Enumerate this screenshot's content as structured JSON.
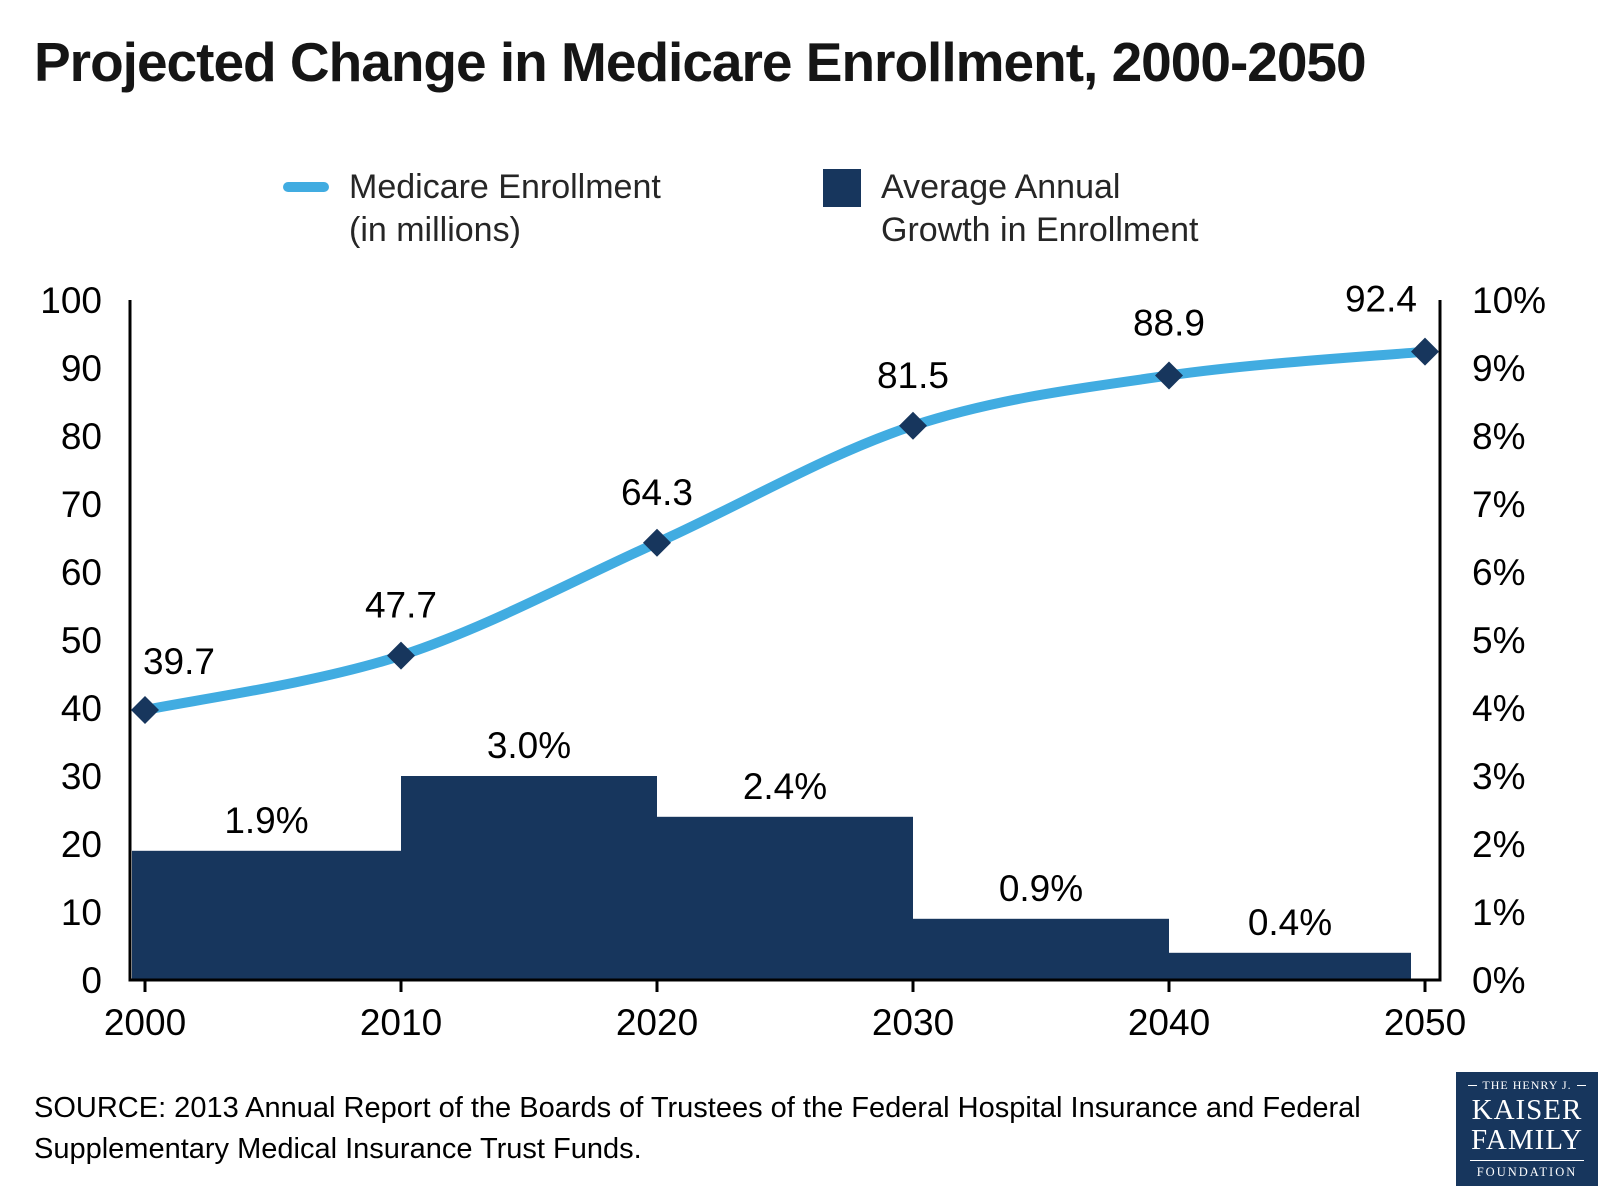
{
  "title": "Projected Change in Medicare Enrollment, 2000-2050",
  "legend": {
    "enrollment": {
      "line1": "Medicare Enrollment",
      "line2": "(in millions)"
    },
    "growth": {
      "line1": "Average Annual",
      "line2": "Growth in Enrollment"
    }
  },
  "source": {
    "text": "SOURCE: 2013 Annual Report of the Boards of Trustees of the Federal Hospital Insurance and Federal Supplementary Medical Insurance Trust Funds."
  },
  "logo": {
    "line1": "THE HENRY J.",
    "line2": "KAISER",
    "line3": "FAMILY",
    "line4": "FOUNDATION"
  },
  "colors": {
    "line": "#41ACE1",
    "marker": "#17365D",
    "bar": "#17365D",
    "axis": "#000000",
    "text": "#000000",
    "logo_bg": "#17365D"
  },
  "chart_data": {
    "type": "line+bar",
    "title": "Projected Change in Medicare Enrollment, 2000-2050",
    "x": [
      2000,
      2010,
      2020,
      2030,
      2040,
      2050
    ],
    "x_ticks": [
      "2000",
      "2010",
      "2020",
      "2030",
      "2040",
      "2050"
    ],
    "series": [
      {
        "name": "Medicare Enrollment (in millions)",
        "type": "line",
        "axis": "left",
        "values": [
          39.7,
          47.7,
          64.3,
          81.5,
          88.9,
          92.4
        ],
        "labels": [
          "39.7",
          "47.7",
          "64.3",
          "81.5",
          "88.9",
          "92.4"
        ]
      },
      {
        "name": "Average Annual Growth in Enrollment",
        "type": "bar",
        "axis": "right",
        "spans": [
          [
            2000,
            2010
          ],
          [
            2010,
            2020
          ],
          [
            2020,
            2030
          ],
          [
            2030,
            2040
          ],
          [
            2040,
            2050
          ]
        ],
        "values": [
          1.9,
          3.0,
          2.4,
          0.9,
          0.4
        ],
        "labels": [
          "1.9%",
          "3.0%",
          "2.4%",
          "0.9%",
          "0.4%"
        ]
      }
    ],
    "left_axis": {
      "min": 0,
      "max": 100,
      "tick_step": 10,
      "ticks": [
        "0",
        "10",
        "20",
        "30",
        "40",
        "50",
        "60",
        "70",
        "80",
        "90",
        "100"
      ]
    },
    "right_axis": {
      "min": 0,
      "max": 10,
      "tick_step": 1,
      "ticks": [
        "0%",
        "1%",
        "2%",
        "3%",
        "4%",
        "5%",
        "6%",
        "7%",
        "8%",
        "9%",
        "10%"
      ]
    },
    "grid": false,
    "legend_position": "top"
  }
}
